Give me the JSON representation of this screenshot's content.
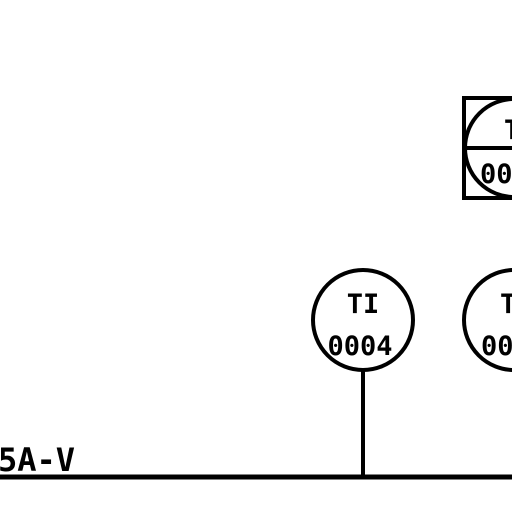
{
  "colors": {
    "background": "#ffffff",
    "stroke": "#000000"
  },
  "line_label": "5A-V",
  "instruments": [
    {
      "symbol": "shared-display-circle-in-square",
      "function": "T",
      "number": "00"
    },
    {
      "symbol": "field-mounted-circle",
      "function": "TI",
      "number": "0004"
    },
    {
      "symbol": "field-mounted-circle",
      "function": "T",
      "number": "00"
    }
  ]
}
